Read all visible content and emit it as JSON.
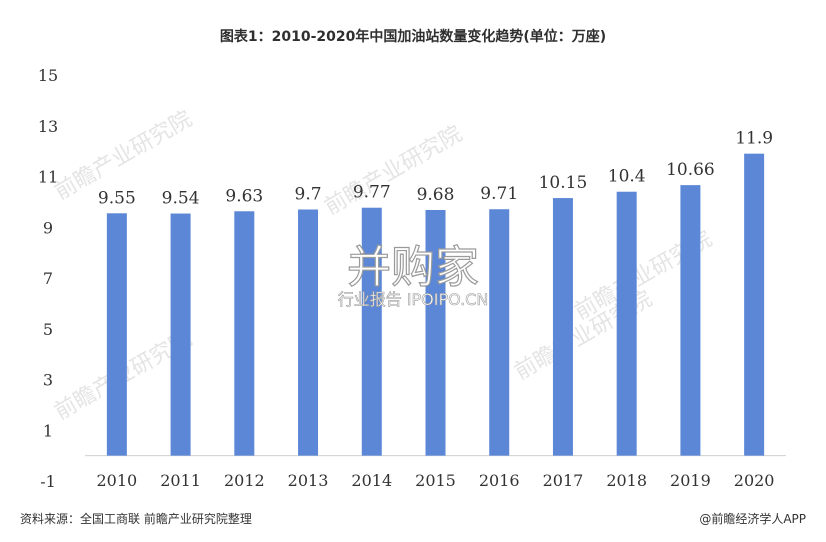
{
  "title": "图表1：2010-2020年中国加油站数量变化趋势(单位：万座)",
  "source_left": "资料来源：全国工商联 前瞻产业研究院整理",
  "source_right": "@前瞻经济学人APP",
  "watermark": {
    "center_main": "并购家",
    "center_sub": "行业报告 IPOIPO.CN",
    "corner_text": "前瞻产业研究院"
  },
  "colors": {
    "bar": "#5b87d6",
    "text": "#333333",
    "axis": "#d0d0d0"
  },
  "chart_data": {
    "type": "bar",
    "title": "图表1：2010-2020年中国加油站数量变化趋势(单位：万座)",
    "categories": [
      "2010",
      "2011",
      "2012",
      "2013",
      "2014",
      "2015",
      "2016",
      "2017",
      "2018",
      "2019",
      "2020"
    ],
    "values": [
      9.55,
      9.54,
      9.63,
      9.7,
      9.77,
      9.68,
      9.71,
      10.15,
      10.4,
      10.66,
      11.9
    ],
    "value_labels": [
      "9.55",
      "9.54",
      "9.63",
      "9.7",
      "9.77",
      "9.68",
      "9.71",
      "10.15",
      "10.4",
      "10.66",
      "11.9"
    ],
    "ylim": [
      -1,
      15
    ],
    "yticks": [
      15,
      13,
      11,
      9,
      7,
      5,
      3,
      1,
      -1
    ],
    "grid": false,
    "legend": "none"
  }
}
